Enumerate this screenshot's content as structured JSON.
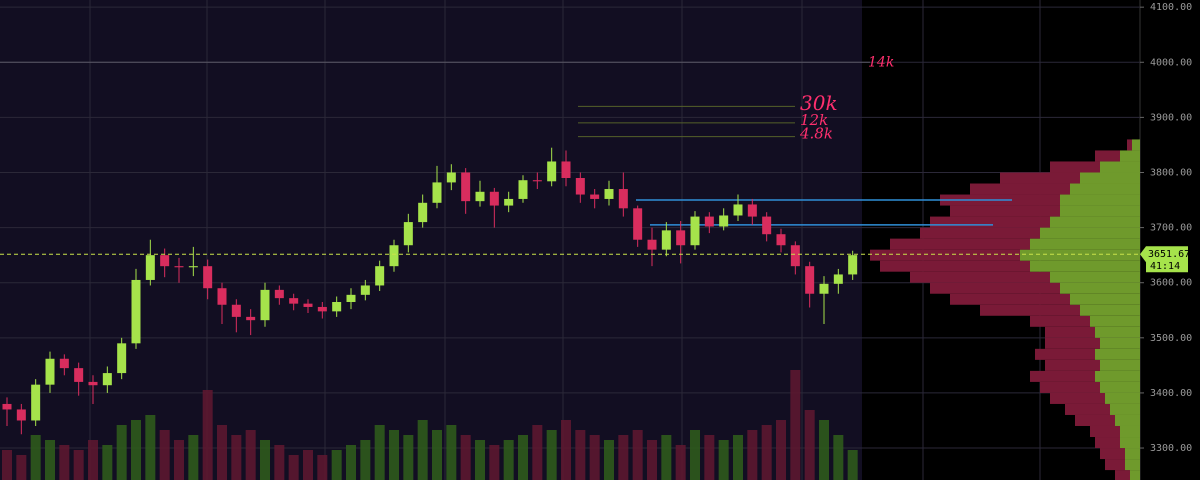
{
  "chart_data": {
    "type": "candlestick",
    "ylim": [
      3242,
      4113
    ],
    "yticks": [
      {
        "value": 4100,
        "label": "4100.00"
      },
      {
        "value": 4000,
        "label": "4000.00"
      },
      {
        "value": 3900,
        "label": "3900.00"
      },
      {
        "value": 3800,
        "label": "3800.00"
      },
      {
        "value": 3700,
        "label": "3700.00"
      },
      {
        "value": 3600,
        "label": "3600.00"
      },
      {
        "value": 3500,
        "label": "3500.00"
      },
      {
        "value": 3400,
        "label": "3400.00"
      },
      {
        "value": 3300,
        "label": "3300.00"
      }
    ],
    "grid": true,
    "up_color": "#a6e34b",
    "down_color": "#d92d5e",
    "open": [
      3380,
      3370,
      3350,
      3415,
      3462,
      3445,
      3420,
      3414,
      3436,
      3490,
      3605,
      3650,
      3630,
      3628,
      3630,
      3590,
      3560,
      3538,
      3532,
      3587,
      3572,
      3562,
      3556,
      3548,
      3565,
      3578,
      3595,
      3630,
      3668,
      3710,
      3745,
      3782,
      3800,
      3748,
      3765,
      3740,
      3752,
      3786,
      3784,
      3820,
      3790,
      3760,
      3752,
      3770,
      3735,
      3678,
      3660,
      3695,
      3668,
      3720,
      3702,
      3722,
      3742,
      3720,
      3688,
      3668,
      3630,
      3580,
      3598,
      3615
    ],
    "high": [
      3392,
      3380,
      3425,
      3475,
      3470,
      3455,
      3432,
      3448,
      3500,
      3625,
      3678,
      3662,
      3645,
      3665,
      3642,
      3600,
      3570,
      3552,
      3600,
      3595,
      3580,
      3570,
      3565,
      3575,
      3590,
      3605,
      3640,
      3678,
      3725,
      3760,
      3812,
      3815,
      3808,
      3785,
      3772,
      3765,
      3795,
      3800,
      3845,
      3840,
      3800,
      3770,
      3785,
      3800,
      3740,
      3700,
      3710,
      3712,
      3730,
      3728,
      3735,
      3760,
      3752,
      3728,
      3698,
      3675,
      3638,
      3612,
      3625,
      3658
    ],
    "low": [
      3340,
      3325,
      3340,
      3400,
      3432,
      3395,
      3380,
      3400,
      3425,
      3480,
      3595,
      3610,
      3600,
      3612,
      3570,
      3525,
      3510,
      3505,
      3520,
      3560,
      3550,
      3545,
      3535,
      3538,
      3552,
      3568,
      3585,
      3620,
      3655,
      3700,
      3735,
      3768,
      3725,
      3738,
      3700,
      3728,
      3745,
      3770,
      3775,
      3775,
      3745,
      3735,
      3740,
      3720,
      3665,
      3630,
      3648,
      3635,
      3660,
      3690,
      3695,
      3712,
      3705,
      3675,
      3655,
      3615,
      3555,
      3525,
      3580,
      3605
    ],
    "close": [
      3370,
      3350,
      3415,
      3462,
      3445,
      3420,
      3414,
      3436,
      3490,
      3605,
      3650,
      3630,
      3628,
      3630,
      3590,
      3560,
      3538,
      3532,
      3587,
      3572,
      3562,
      3556,
      3548,
      3565,
      3578,
      3595,
      3630,
      3668,
      3710,
      3745,
      3782,
      3800,
      3748,
      3765,
      3740,
      3752,
      3786,
      3784,
      3820,
      3790,
      3760,
      3752,
      3770,
      3735,
      3678,
      3660,
      3695,
      3668,
      3720,
      3702,
      3722,
      3742,
      3720,
      3688,
      3668,
      3630,
      3580,
      3598,
      3615,
      3650
    ],
    "volume": [
      30,
      25,
      45,
      40,
      35,
      30,
      40,
      35,
      55,
      60,
      65,
      50,
      40,
      45,
      90,
      55,
      45,
      50,
      40,
      35,
      25,
      30,
      25,
      30,
      35,
      40,
      55,
      50,
      45,
      60,
      50,
      55,
      45,
      40,
      35,
      40,
      45,
      55,
      50,
      60,
      50,
      45,
      40,
      45,
      50,
      40,
      45,
      35,
      50,
      45,
      40,
      45,
      50,
      55,
      60,
      110,
      70,
      60,
      45,
      30
    ],
    "profile": {
      "levels": [
        3250,
        3270,
        3290,
        3310,
        3330,
        3350,
        3370,
        3390,
        3410,
        3430,
        3450,
        3470,
        3490,
        3510,
        3530,
        3550,
        3570,
        3590,
        3610,
        3630,
        3650,
        3670,
        3690,
        3710,
        3730,
        3750,
        3770,
        3790,
        3810,
        3830,
        3850
      ],
      "buy": [
        10,
        15,
        15,
        20,
        20,
        25,
        30,
        35,
        40,
        45,
        40,
        45,
        40,
        45,
        50,
        60,
        70,
        80,
        90,
        110,
        120,
        110,
        100,
        90,
        80,
        80,
        70,
        60,
        40,
        20,
        8
      ],
      "sell": [
        15,
        20,
        25,
        25,
        30,
        40,
        45,
        55,
        60,
        65,
        55,
        60,
        55,
        50,
        60,
        100,
        120,
        130,
        140,
        150,
        150,
        140,
        120,
        120,
        110,
        120,
        100,
        80,
        50,
        25,
        5
      ],
      "buy_color": "#6f9a2c",
      "sell_color": "#7a1a37"
    },
    "hlines": [
      {
        "value": 3750,
        "color": "#2f8fd8"
      },
      {
        "value": 3705,
        "color": "#2f8fd8"
      }
    ],
    "annotations": [
      {
        "text": "14k",
        "y": 4000
      },
      {
        "text": "30k",
        "y": 3920
      },
      {
        "text": "12k",
        "y": 3890
      },
      {
        "text": "4.8k",
        "y": 3865
      }
    ],
    "last_price": {
      "value": 3651.67,
      "label": "3651.67"
    },
    "countdown": "41:14"
  }
}
